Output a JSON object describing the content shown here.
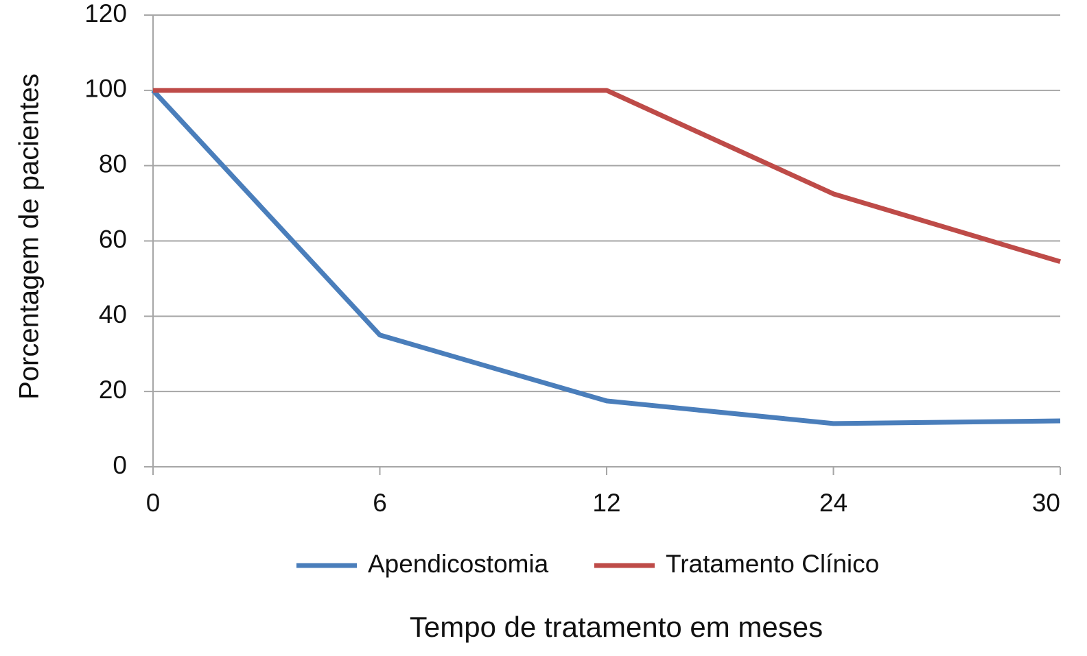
{
  "chart_data": {
    "type": "line",
    "x_label": "Tempo de tratamento em meses",
    "y_label": "Porcentagem de pacientes",
    "categories": [
      "0",
      "6",
      "12",
      "24",
      "30"
    ],
    "series": [
      {
        "name": "Apendicostomia",
        "color": "#4a7ebb",
        "values": [
          100,
          35,
          17.5,
          11.5,
          12.2
        ]
      },
      {
        "name": "Tratamento Clínico",
        "color": "#be4b48",
        "values": [
          100,
          100,
          100,
          72.5,
          54.5
        ]
      }
    ],
    "ylim": [
      0,
      120
    ],
    "yticks": [
      0,
      20,
      40,
      60,
      80,
      100,
      120
    ],
    "grid": true
  }
}
